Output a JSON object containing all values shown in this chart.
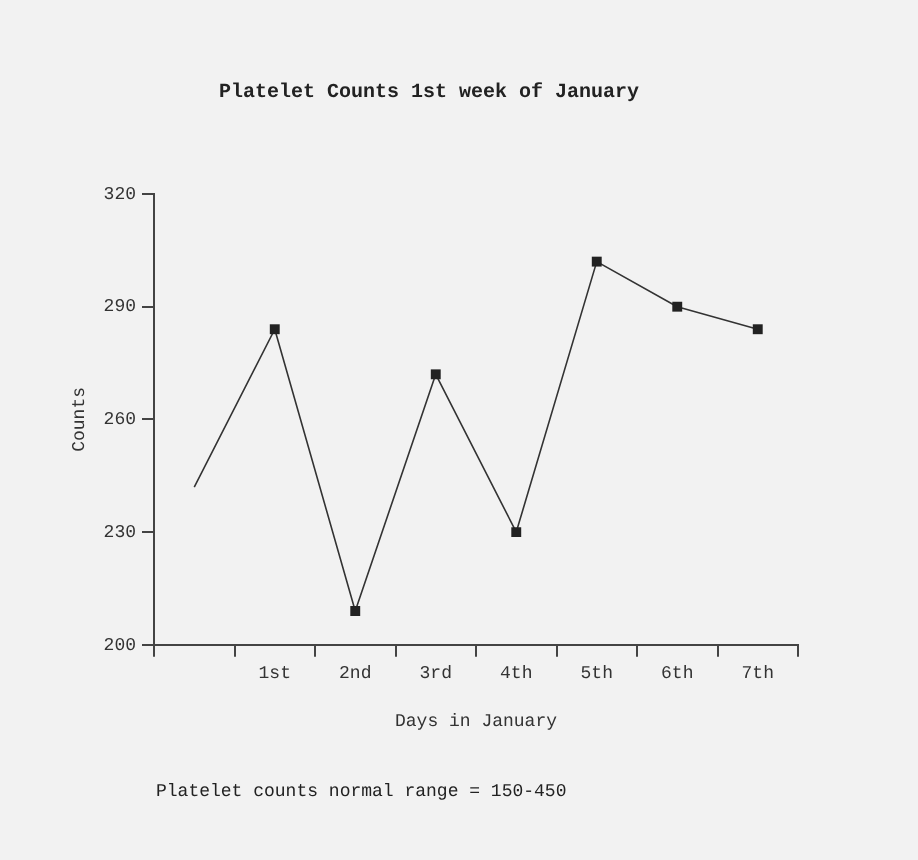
{
  "chart_data": {
    "type": "line",
    "title": "Platelet Counts 1st week of January",
    "xlabel": "Days in January",
    "ylabel": "Counts",
    "categories": [
      null,
      "1st",
      "2nd",
      "3rd",
      "4th",
      "5th",
      "6th",
      "7th"
    ],
    "series": [
      {
        "color": "#333333",
        "values": [
          242,
          284,
          209,
          272,
          230,
          302,
          290,
          284
        ]
      }
    ],
    "ylim": [
      200,
      320
    ],
    "yticks": [
      200,
      230,
      260,
      290,
      320
    ],
    "grid": false,
    "legend": false,
    "marker": "square",
    "line_style": "solid",
    "annotations": [
      "Platelet counts normal range = 150-450"
    ]
  }
}
